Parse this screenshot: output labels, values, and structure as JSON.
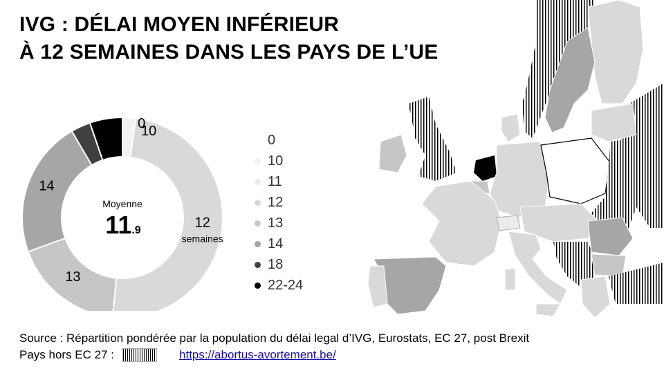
{
  "title": {
    "line1": "IVG : DÉLAI MOYEN INFÉRIEUR",
    "line2": "À 12 SEMAINES DANS LES PAYS DE L’UE"
  },
  "chart_data": {
    "type": "pie",
    "style": "donut",
    "center_label": "Moyenne",
    "center_value_int": "11",
    "center_value_dec": ".9",
    "slices": [
      {
        "label": "0",
        "unit": "",
        "value": 0.0,
        "color": "#ffffff"
      },
      {
        "label": "10",
        "unit": "",
        "value": 0.02,
        "color": "#f2f2f2"
      },
      {
        "label": "12",
        "unit": "semaines",
        "value": 0.47,
        "color": "#d9d9d9"
      },
      {
        "label": "13",
        "unit": "",
        "value": 0.17,
        "color": "#c6c6c6"
      },
      {
        "label": "14",
        "unit": "",
        "value": 0.21,
        "color": "#a6a6a6"
      },
      {
        "label": "18",
        "unit": "",
        "value": 0.03,
        "color": "#404040"
      },
      {
        "label": "22-24",
        "unit": "",
        "value": 0.05,
        "color": "#000000"
      }
    ],
    "legend_position": "right"
  },
  "legend": [
    {
      "label": "0",
      "color": "#ffffff"
    },
    {
      "label": "10",
      "color": "#f2f2f2"
    },
    {
      "label": "11",
      "color": "#ececec"
    },
    {
      "label": "12",
      "color": "#d9d9d9"
    },
    {
      "label": "13",
      "color": "#c6c6c6"
    },
    {
      "label": "14",
      "color": "#a6a6a6"
    },
    {
      "label": "18",
      "color": "#404040"
    },
    {
      "label": "22-24",
      "color": "#000000"
    }
  ],
  "footer": {
    "source": "Source : Répartition pondérée  par la population du délai legal d’IVG, Eurostats, EC 27, post Brexit",
    "outside_label": "Pays hors EC 27 :",
    "link": "https://abortus-avortement.be/"
  }
}
